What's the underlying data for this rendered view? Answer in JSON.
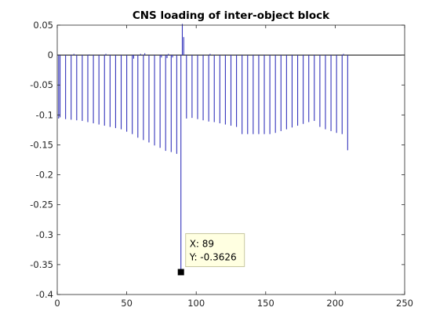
{
  "chart_data": {
    "type": "stem",
    "title": "CNS loading of inter-object block",
    "xlabel": "",
    "ylabel": "",
    "xlim": [
      0,
      250
    ],
    "ylim": [
      -0.4,
      0.05
    ],
    "xticks": [
      0,
      50,
      100,
      150,
      200,
      250
    ],
    "xtick_labels": [
      "0",
      "50",
      "100",
      "150",
      "200",
      "250"
    ],
    "yticks": [
      0.05,
      0,
      -0.05,
      -0.1,
      -0.15,
      -0.2,
      -0.25,
      -0.3,
      -0.35,
      -0.4
    ],
    "ytick_labels": [
      "0.05",
      "0",
      "-0.05",
      "-0.1",
      "-0.15",
      "-0.2",
      "-0.25",
      "-0.3",
      "-0.35",
      "-0.4"
    ],
    "series": [
      {
        "color": "#3333bb",
        "points": [
          {
            "x": 1,
            "y": -0.106
          },
          {
            "x": 2,
            "y": -0.104
          },
          {
            "x": 6,
            "y": -0.107
          },
          {
            "x": 10,
            "y": -0.108
          },
          {
            "x": 12,
            "y": 0.002
          },
          {
            "x": 14,
            "y": -0.109
          },
          {
            "x": 18,
            "y": -0.11
          },
          {
            "x": 22,
            "y": -0.112
          },
          {
            "x": 23,
            "y": 0.001
          },
          {
            "x": 26,
            "y": -0.114
          },
          {
            "x": 30,
            "y": -0.116
          },
          {
            "x": 34,
            "y": -0.118
          },
          {
            "x": 35,
            "y": 0.002
          },
          {
            "x": 38,
            "y": -0.12
          },
          {
            "x": 42,
            "y": -0.122
          },
          {
            "x": 46,
            "y": -0.124
          },
          {
            "x": 50,
            "y": -0.128
          },
          {
            "x": 54,
            "y": -0.132
          },
          {
            "x": 55,
            "y": -0.006
          },
          {
            "x": 58,
            "y": -0.138
          },
          {
            "x": 60,
            "y": 0.002
          },
          {
            "x": 62,
            "y": -0.142
          },
          {
            "x": 63,
            "y": 0.003
          },
          {
            "x": 66,
            "y": -0.146
          },
          {
            "x": 70,
            "y": -0.151
          },
          {
            "x": 74,
            "y": -0.155
          },
          {
            "x": 75,
            "y": -0.004
          },
          {
            "x": 78,
            "y": -0.16
          },
          {
            "x": 79,
            "y": -0.005
          },
          {
            "x": 80,
            "y": 0.002
          },
          {
            "x": 82,
            "y": -0.162
          },
          {
            "x": 83,
            "y": -0.004
          },
          {
            "x": 86,
            "y": -0.165
          },
          {
            "x": 89,
            "y": -0.3626
          },
          {
            "x": 90,
            "y": 0.052
          },
          {
            "x": 91,
            "y": 0.03
          },
          {
            "x": 93,
            "y": -0.106
          },
          {
            "x": 97,
            "y": -0.105
          },
          {
            "x": 101,
            "y": -0.107
          },
          {
            "x": 105,
            "y": -0.109
          },
          {
            "x": 109,
            "y": -0.111
          },
          {
            "x": 110,
            "y": 0.002
          },
          {
            "x": 113,
            "y": -0.112
          },
          {
            "x": 117,
            "y": -0.114
          },
          {
            "x": 121,
            "y": -0.116
          },
          {
            "x": 125,
            "y": -0.118
          },
          {
            "x": 129,
            "y": -0.12
          },
          {
            "x": 133,
            "y": -0.132
          },
          {
            "x": 137,
            "y": -0.132
          },
          {
            "x": 141,
            "y": -0.132
          },
          {
            "x": 145,
            "y": -0.132
          },
          {
            "x": 149,
            "y": -0.132
          },
          {
            "x": 153,
            "y": -0.132
          },
          {
            "x": 157,
            "y": -0.13
          },
          {
            "x": 161,
            "y": -0.127
          },
          {
            "x": 165,
            "y": -0.124
          },
          {
            "x": 169,
            "y": -0.121
          },
          {
            "x": 173,
            "y": -0.118
          },
          {
            "x": 177,
            "y": -0.115
          },
          {
            "x": 181,
            "y": -0.112
          },
          {
            "x": 185,
            "y": -0.11
          },
          {
            "x": 189,
            "y": -0.12
          },
          {
            "x": 193,
            "y": -0.124
          },
          {
            "x": 197,
            "y": -0.127
          },
          {
            "x": 201,
            "y": -0.13
          },
          {
            "x": 205,
            "y": -0.132
          },
          {
            "x": 206,
            "y": 0.002
          },
          {
            "x": 209,
            "y": -0.159
          }
        ]
      }
    ],
    "datatip": {
      "x": 89,
      "y": -0.3626,
      "x_label": "X: 89",
      "y_label": "Y: -0.3626"
    },
    "grid": false
  }
}
